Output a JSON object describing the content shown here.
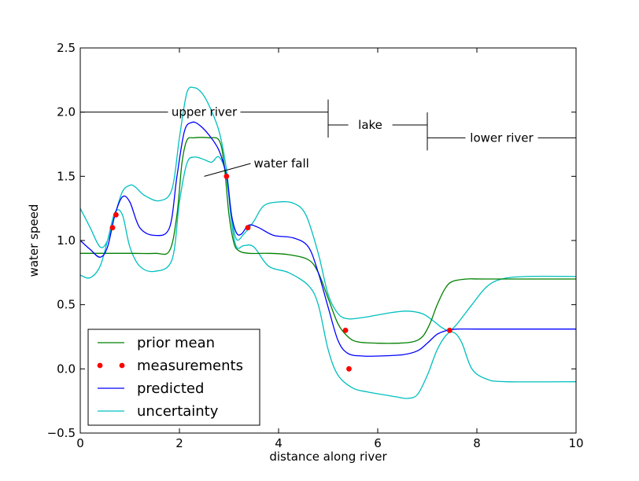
{
  "chart_data": {
    "type": "line",
    "title": "",
    "xlabel": "distance along river",
    "ylabel": "water speed",
    "xlim": [
      0,
      10
    ],
    "ylim": [
      -0.5,
      2.5
    ],
    "xticks": [
      0,
      2,
      4,
      6,
      8,
      10
    ],
    "yticks": [
      -0.5,
      0.0,
      0.5,
      1.0,
      1.5,
      2.0,
      2.5
    ],
    "xtick_labels": [
      "0",
      "2",
      "4",
      "6",
      "8",
      "10"
    ],
    "ytick_labels": [
      "−0.5",
      "0.0",
      "0.5",
      "1.0",
      "1.5",
      "2.0",
      "2.5"
    ],
    "grid": false,
    "legend_position": "lower-left",
    "colors": {
      "prior_mean": "#008000",
      "measurements": "#ff0000",
      "predicted": "#0000ff",
      "uncertainty": "#00bfbf"
    },
    "legend": [
      {
        "key": "prior_mean",
        "label": "prior mean",
        "style": "line"
      },
      {
        "key": "measurements",
        "label": "measurements",
        "style": "points"
      },
      {
        "key": "predicted",
        "label": "predicted",
        "style": "line"
      },
      {
        "key": "uncertainty",
        "label": "uncertainty",
        "style": "line"
      }
    ],
    "series": [
      {
        "key": "prior_mean",
        "name": "prior mean",
        "x": [
          0,
          1.0,
          1.5,
          1.8,
          1.95,
          2.05,
          2.15,
          2.3,
          2.6,
          2.8,
          2.9,
          3.0,
          3.1,
          3.2,
          3.4,
          3.8,
          4.2,
          4.6,
          4.8,
          5.0,
          5.2,
          5.4,
          5.6,
          6.0,
          6.4,
          6.7,
          6.9,
          7.05,
          7.2,
          7.35,
          7.5,
          7.8,
          8.2,
          10
        ],
        "y": [
          0.9,
          0.9,
          0.9,
          0.92,
          1.2,
          1.6,
          1.78,
          1.8,
          1.8,
          1.78,
          1.6,
          1.2,
          0.98,
          0.92,
          0.9,
          0.9,
          0.89,
          0.85,
          0.75,
          0.55,
          0.35,
          0.25,
          0.21,
          0.2,
          0.2,
          0.21,
          0.25,
          0.35,
          0.5,
          0.62,
          0.68,
          0.7,
          0.7,
          0.7
        ]
      },
      {
        "key": "predicted",
        "name": "predicted",
        "x": [
          0,
          0.2,
          0.4,
          0.55,
          0.7,
          0.85,
          1.0,
          1.2,
          1.5,
          1.8,
          1.95,
          2.1,
          2.25,
          2.4,
          2.6,
          2.8,
          2.95,
          3.05,
          3.15,
          3.25,
          3.4,
          3.6,
          3.9,
          4.3,
          4.6,
          4.8,
          5.0,
          5.2,
          5.4,
          5.7,
          6.0,
          6.5,
          6.8,
          7.0,
          7.2,
          7.4,
          7.6,
          8.0,
          9.0,
          10
        ],
        "y": [
          1.0,
          0.93,
          0.87,
          0.95,
          1.2,
          1.34,
          1.3,
          1.1,
          1.04,
          1.1,
          1.5,
          1.85,
          1.92,
          1.9,
          1.82,
          1.7,
          1.5,
          1.2,
          1.06,
          1.05,
          1.12,
          1.1,
          1.04,
          1.02,
          0.95,
          0.75,
          0.48,
          0.22,
          0.12,
          0.1,
          0.1,
          0.11,
          0.14,
          0.2,
          0.27,
          0.3,
          0.31,
          0.31,
          0.31,
          0.31
        ]
      },
      {
        "key": "uncertainty_upper",
        "name": "uncertainty",
        "x": [
          0,
          0.2,
          0.4,
          0.55,
          0.7,
          0.85,
          1.0,
          1.1,
          1.3,
          1.6,
          1.85,
          2.0,
          2.15,
          2.3,
          2.45,
          2.6,
          2.8,
          2.95,
          3.05,
          3.15,
          3.3,
          3.5,
          3.7,
          4.0,
          4.3,
          4.55,
          4.8,
          5.0,
          5.2,
          5.4,
          5.7,
          6.0,
          6.3,
          6.6,
          6.9,
          7.1,
          7.3,
          7.45,
          7.6,
          7.9,
          8.2,
          8.5,
          9.0,
          10
        ],
        "y": [
          1.25,
          1.1,
          0.95,
          1.0,
          1.2,
          1.38,
          1.43,
          1.42,
          1.35,
          1.31,
          1.4,
          1.8,
          2.15,
          2.19,
          2.15,
          2.05,
          1.85,
          1.55,
          1.2,
          1.01,
          1.05,
          1.15,
          1.27,
          1.3,
          1.29,
          1.2,
          0.9,
          0.58,
          0.43,
          0.39,
          0.4,
          0.42,
          0.44,
          0.45,
          0.43,
          0.38,
          0.32,
          0.3,
          0.35,
          0.5,
          0.64,
          0.7,
          0.72,
          0.72
        ]
      },
      {
        "key": "uncertainty_lower",
        "name": "uncertainty",
        "x": [
          0,
          0.2,
          0.4,
          0.55,
          0.7,
          0.85,
          1.0,
          1.2,
          1.5,
          1.85,
          2.0,
          2.15,
          2.3,
          2.5,
          2.65,
          2.8,
          2.95,
          3.05,
          3.15,
          3.3,
          3.5,
          3.8,
          4.2,
          4.6,
          4.8,
          5.0,
          5.2,
          5.5,
          5.8,
          6.1,
          6.4,
          6.6,
          6.8,
          7.0,
          7.2,
          7.4,
          7.55,
          7.7,
          7.9,
          8.2,
          8.6,
          10
        ],
        "y": [
          0.73,
          0.71,
          0.8,
          1.0,
          1.22,
          1.2,
          0.95,
          0.8,
          0.76,
          0.85,
          1.3,
          1.6,
          1.65,
          1.63,
          1.61,
          1.65,
          1.5,
          1.15,
          0.95,
          0.96,
          0.95,
          0.8,
          0.75,
          0.65,
          0.5,
          0.15,
          -0.05,
          -0.15,
          -0.18,
          -0.2,
          -0.22,
          -0.23,
          -0.2,
          -0.05,
          0.15,
          0.27,
          0.28,
          0.2,
          0.0,
          -0.08,
          -0.1,
          -0.1
        ]
      }
    ],
    "measurements": {
      "x": [
        0.65,
        0.72,
        2.95,
        3.38,
        5.35,
        5.42,
        7.45
      ],
      "y": [
        1.1,
        1.2,
        1.5,
        1.1,
        0.3,
        0.0,
        0.3
      ]
    },
    "annotations": {
      "upper_river": {
        "text": "upper river",
        "x": 2.5,
        "y": 2.0,
        "span": [
          0,
          5
        ]
      },
      "lake": {
        "text": "lake",
        "x": 5.85,
        "y": 1.9,
        "span": [
          5,
          7
        ]
      },
      "lower_river": {
        "text": "lower river",
        "x": 8.5,
        "y": 1.8,
        "span": [
          7,
          10
        ]
      },
      "water_fall": {
        "text": "water fall",
        "text_x": 3.5,
        "text_y": 1.6,
        "arrow_x": 2.5,
        "arrow_y": 1.5
      }
    }
  }
}
